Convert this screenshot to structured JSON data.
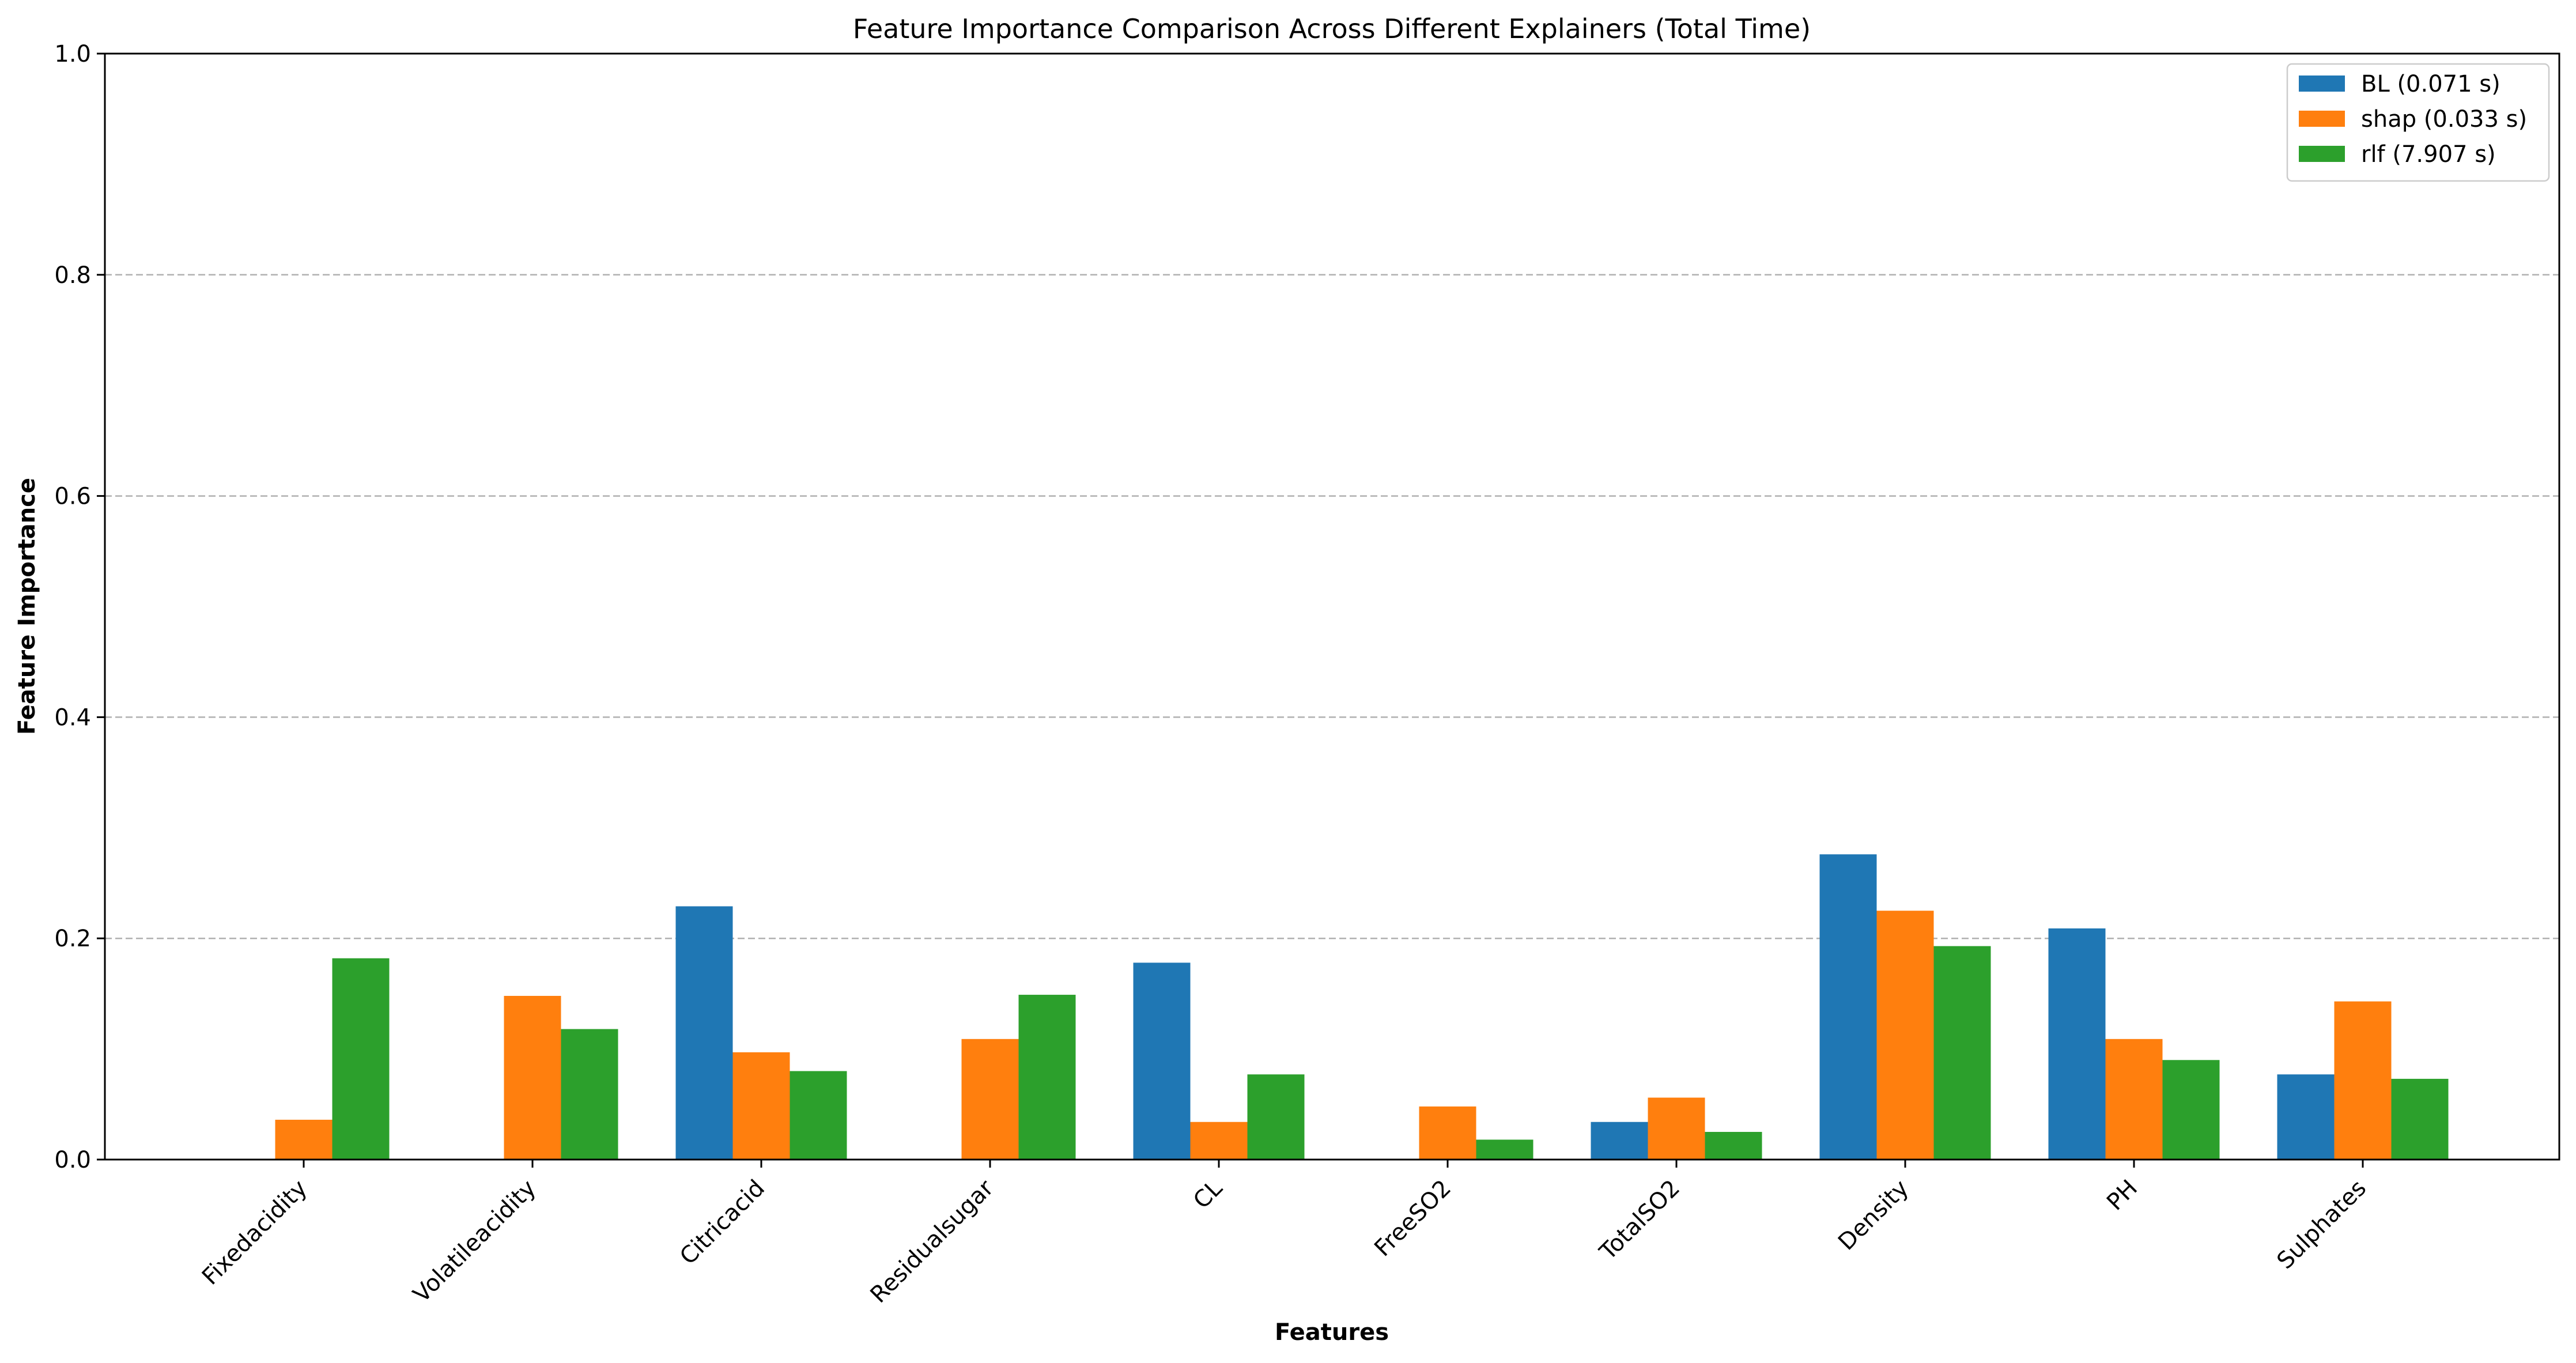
{
  "chart_data": {
    "type": "bar",
    "title": "Feature Importance Comparison Across Different Explainers (Total Time)",
    "xlabel": "Features",
    "ylabel": "Feature Importance",
    "ylim": [
      0,
      1.0
    ],
    "yticks": [
      "0.0",
      "0.2",
      "0.4",
      "0.6",
      "0.8",
      "1.0"
    ],
    "grid": true,
    "legend_position": "top-right",
    "categories": [
      "Fixedacidity",
      "Volatileacidity",
      "Citricacid",
      "Residualsugar",
      "CL",
      "FreeSO2",
      "TotalSO2",
      "Density",
      "PH",
      "Sulphates"
    ],
    "series": [
      {
        "name": "BL (0.071 s)",
        "color": "#1f77b4",
        "values": [
          0.0,
          0.0,
          0.229,
          0.0,
          0.178,
          0.0,
          0.034,
          0.276,
          0.209,
          0.077
        ]
      },
      {
        "name": "shap (0.033 s)",
        "color": "#ff7f0e",
        "values": [
          0.036,
          0.148,
          0.097,
          0.109,
          0.034,
          0.048,
          0.056,
          0.225,
          0.109,
          0.143
        ]
      },
      {
        "name": "rlf (7.907 s)",
        "color": "#2ca02c",
        "values": [
          0.182,
          0.118,
          0.08,
          0.149,
          0.077,
          0.018,
          0.025,
          0.193,
          0.09,
          0.073
        ]
      }
    ]
  }
}
